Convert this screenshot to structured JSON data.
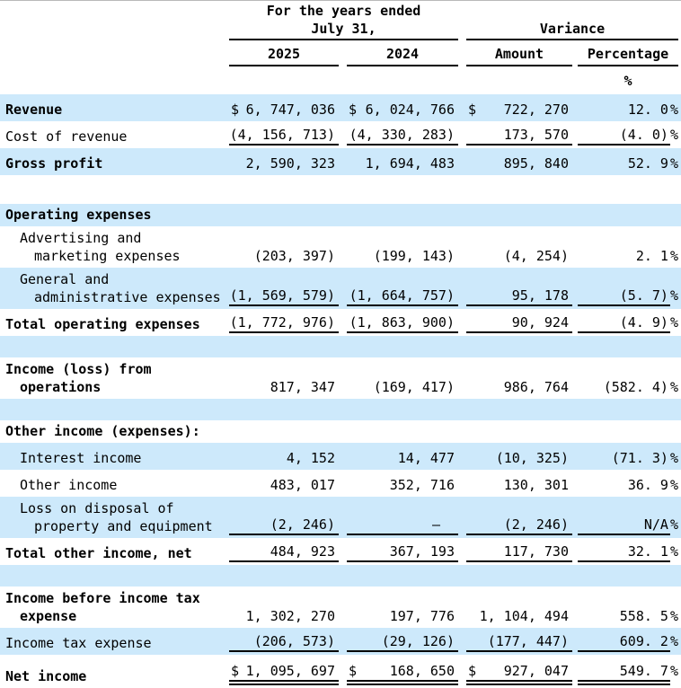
{
  "table": {
    "header": {
      "years_ended_line1": "For the years ended",
      "years_ended_line2": "July 31,",
      "variance": "Variance",
      "col_2025": "2025",
      "col_2024": "2024",
      "amount": "Amount",
      "percentage": "Percentage",
      "percent_symbol": "%"
    },
    "colors": {
      "row_highlight": "#cde9fb",
      "text": "#000000",
      "rule": "#000000"
    },
    "rows": [
      {
        "type": "data",
        "bg": "blue",
        "bold": true,
        "indent": 0,
        "label": [
          "Revenue"
        ],
        "currency": "$",
        "v2025": "6, 747, 036",
        "v2024": "6, 024, 766",
        "amount": "722, 270",
        "pct": "12. 0",
        "pct_suffix": "%",
        "underline": "none"
      },
      {
        "type": "data",
        "bg": "white",
        "bold": false,
        "indent": 0,
        "label": [
          "Cost of revenue"
        ],
        "v2025": "(4, 156, 713)",
        "v2024": "(4, 330, 283)",
        "amount": "173, 570",
        "pct": "(4. 0)",
        "pct_suffix": "%",
        "underline": "single"
      },
      {
        "type": "data",
        "bg": "blue",
        "bold": true,
        "indent": 0,
        "label": [
          "Gross profit"
        ],
        "v2025": "2, 590, 323",
        "v2024": "1, 694, 483",
        "amount": "895, 840",
        "pct": "52. 9",
        "pct_suffix": "%",
        "underline": "none"
      },
      {
        "type": "spacer",
        "bg": "white"
      },
      {
        "type": "section",
        "bg": "blue",
        "bold": true,
        "indent": 0,
        "label": [
          "Operating expenses"
        ]
      },
      {
        "type": "data",
        "bg": "white",
        "bold": false,
        "indent": 1,
        "label": [
          "Advertising and",
          "marketing expenses"
        ],
        "v2025": "(203, 397)",
        "v2024": "(199, 143)",
        "amount": "(4, 254)",
        "pct": "2. 1",
        "pct_suffix": "%",
        "underline": "none"
      },
      {
        "type": "data",
        "bg": "blue",
        "bold": false,
        "indent": 1,
        "label": [
          "General and",
          "administrative expenses"
        ],
        "v2025": "(1, 569, 579)",
        "v2024": "(1, 664, 757)",
        "amount": "95, 178",
        "pct": "(5. 7)",
        "pct_suffix": "%",
        "underline": "single"
      },
      {
        "type": "data",
        "bg": "white",
        "bold": true,
        "indent": 0,
        "label": [
          "Total operating expenses"
        ],
        "v2025": "(1, 772, 976)",
        "v2024": "(1, 863, 900)",
        "amount": "90, 924",
        "pct": "(4. 9)",
        "pct_suffix": "%",
        "underline": "single"
      },
      {
        "type": "spacer",
        "bg": "blue"
      },
      {
        "type": "data",
        "bg": "white",
        "bold": true,
        "indent": 0,
        "label": [
          "Income (loss) from",
          "operations"
        ],
        "v2025": "817, 347",
        "v2024": "(169, 417)",
        "amount": "986, 764",
        "pct": "(582. 4)",
        "pct_suffix": "%",
        "underline": "none"
      },
      {
        "type": "spacer",
        "bg": "blue"
      },
      {
        "type": "section",
        "bg": "white",
        "bold": true,
        "indent": 0,
        "label": [
          "Other income (expenses):"
        ]
      },
      {
        "type": "data",
        "bg": "blue",
        "bold": false,
        "indent": 1,
        "label": [
          "Interest income"
        ],
        "v2025": "4, 152",
        "v2024": "14, 477",
        "amount": "(10, 325)",
        "pct": "(71. 3)",
        "pct_suffix": "%",
        "underline": "none"
      },
      {
        "type": "data",
        "bg": "white",
        "bold": false,
        "indent": 1,
        "label": [
          "Other income"
        ],
        "v2025": "483, 017",
        "v2024": "352, 716",
        "amount": "130, 301",
        "pct": "36. 9",
        "pct_suffix": "%",
        "underline": "none"
      },
      {
        "type": "data",
        "bg": "blue",
        "bold": false,
        "indent": 1,
        "label": [
          "Loss on disposal of",
          "property and equipment"
        ],
        "v2025": "(2, 246)",
        "v2024": "—",
        "amount": "(2, 246)",
        "pct": "N/A",
        "pct_suffix": "%",
        "underline": "single"
      },
      {
        "type": "data",
        "bg": "white",
        "bold": true,
        "indent": 0,
        "label": [
          "Total other income, net"
        ],
        "v2025": "484, 923",
        "v2024": "367, 193",
        "amount": "117, 730",
        "pct": "32. 1",
        "pct_suffix": "%",
        "underline": "single"
      },
      {
        "type": "spacer",
        "bg": "blue"
      },
      {
        "type": "data",
        "bg": "white",
        "bold": true,
        "indent": 0,
        "label": [
          "Income before income tax",
          "expense"
        ],
        "v2025": "1, 302, 270",
        "v2024": "197, 776",
        "amount": "1, 104, 494",
        "pct": "558. 5",
        "pct_suffix": "%",
        "underline": "none"
      },
      {
        "type": "data",
        "bg": "blue",
        "bold": false,
        "indent": 0,
        "label": [
          "Income tax expense"
        ],
        "v2025": "(206, 573)",
        "v2024": "(29, 126)",
        "amount": "(177, 447)",
        "pct": "609. 2",
        "pct_suffix": "%",
        "underline": "single"
      },
      {
        "type": "data",
        "bg": "white",
        "bold": true,
        "indent": 0,
        "label": [
          "Net income"
        ],
        "currency": "$",
        "v2025": "1, 095, 697",
        "v2024": "168, 650",
        "amount": "927, 047",
        "pct": "549. 7",
        "pct_suffix": "%",
        "underline": "double"
      }
    ]
  }
}
